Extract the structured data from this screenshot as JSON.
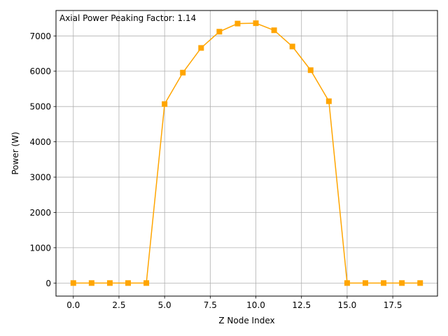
{
  "chart_data": {
    "type": "line",
    "title": "",
    "annotation": "Axial Power Peaking Factor: 1.14",
    "xlabel": "Z Node Index",
    "ylabel": "Power (W)",
    "xlim": [
      -0.95,
      19.95
    ],
    "ylim": [
      -370,
      7720
    ],
    "xticks": [
      0,
      2.5,
      5,
      7.5,
      10,
      12.5,
      15,
      17.5
    ],
    "xtick_labels": [
      "0.0",
      "2.5",
      "5.0",
      "7.5",
      "10.0",
      "12.5",
      "15.0",
      "17.5"
    ],
    "yticks": [
      0,
      1000,
      2000,
      3000,
      4000,
      5000,
      6000,
      7000
    ],
    "ytick_labels": [
      "0",
      "1000",
      "2000",
      "3000",
      "4000",
      "5000",
      "6000",
      "7000"
    ],
    "grid": true,
    "series": [
      {
        "color": "#FFA500",
        "marker": "square",
        "x": [
          0,
          1,
          2,
          3,
          4,
          5,
          6,
          7,
          8,
          9,
          10,
          11,
          12,
          13,
          14,
          15,
          16,
          17,
          18,
          19
        ],
        "y": [
          0,
          0,
          0,
          0,
          0,
          5070,
          5960,
          6660,
          7120,
          7350,
          7360,
          7160,
          6700,
          6030,
          5150,
          0,
          0,
          0,
          0,
          0
        ]
      }
    ]
  }
}
